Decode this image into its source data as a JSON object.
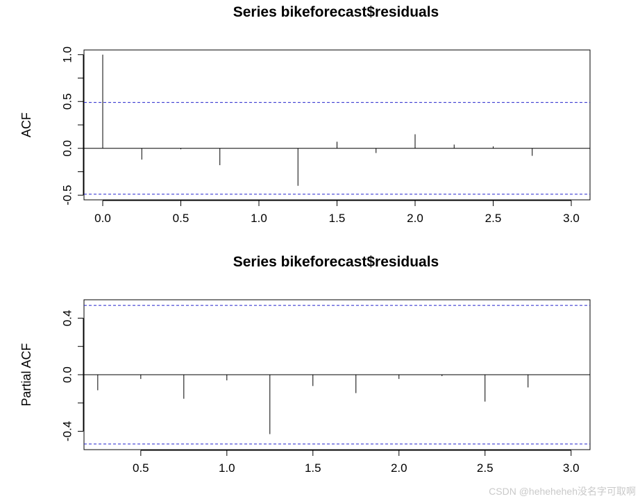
{
  "watermark": "CSDN @heheheheh没名字可取啊",
  "chart_data": [
    {
      "type": "bar",
      "title": "Series  bikeforecast$residuals",
      "ylabel": "ACF",
      "xlabel": "",
      "xlim": [
        -0.12,
        3.12
      ],
      "ylim": [
        -0.55,
        1.05
      ],
      "x_ticks": [
        "0.0",
        "0.5",
        "1.0",
        "1.5",
        "2.0",
        "2.5",
        "3.0"
      ],
      "y_ticks": [
        "-0.5",
        "0.0",
        "0.5",
        "1.0"
      ],
      "confidence_bound": 0.49,
      "x": [
        0.0,
        0.25,
        0.5,
        0.75,
        1.0,
        1.25,
        1.5,
        1.75,
        2.0,
        2.25,
        2.5,
        2.75
      ],
      "values": [
        1.0,
        -0.12,
        -0.01,
        -0.18,
        0.0,
        -0.4,
        0.07,
        -0.05,
        0.15,
        0.04,
        0.02,
        -0.08
      ]
    },
    {
      "type": "bar",
      "title": "Series  bikeforecast$residuals",
      "ylabel": "Partial ACF",
      "xlabel": "",
      "xlim": [
        0.17,
        3.11
      ],
      "ylim": [
        -0.53,
        0.53
      ],
      "x_ticks": [
        "0.5",
        "1.0",
        "1.5",
        "2.0",
        "2.5",
        "3.0"
      ],
      "y_ticks": [
        "-0.4",
        "0.0",
        "0.4"
      ],
      "confidence_bound": 0.49,
      "x": [
        0.25,
        0.5,
        0.75,
        1.0,
        1.25,
        1.5,
        1.75,
        2.0,
        2.25,
        2.5,
        2.75
      ],
      "values": [
        -0.11,
        -0.03,
        -0.17,
        -0.04,
        -0.42,
        -0.08,
        -0.13,
        -0.03,
        -0.01,
        -0.19,
        -0.09
      ]
    }
  ]
}
